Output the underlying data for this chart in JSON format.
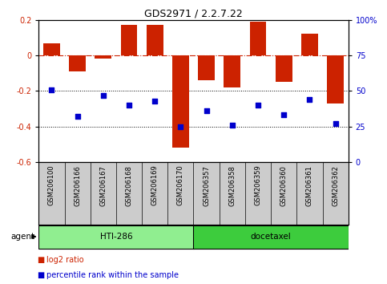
{
  "title": "GDS2971 / 2.2.7.22",
  "samples": [
    "GSM206100",
    "GSM206166",
    "GSM206167",
    "GSM206168",
    "GSM206169",
    "GSM206170",
    "GSM206357",
    "GSM206358",
    "GSM206359",
    "GSM206360",
    "GSM206361",
    "GSM206362"
  ],
  "log2_ratio": [
    0.07,
    -0.09,
    -0.02,
    0.17,
    0.17,
    -0.52,
    -0.14,
    -0.18,
    0.19,
    -0.15,
    0.12,
    -0.27
  ],
  "percentile_rank": [
    51,
    32,
    47,
    40,
    43,
    25,
    36,
    26,
    40,
    33,
    44,
    27
  ],
  "groups": [
    {
      "label": "HTI-286",
      "color": "#90EE90",
      "start": 0,
      "end": 5
    },
    {
      "label": "docetaxel",
      "color": "#3DCC3D",
      "start": 6,
      "end": 11
    }
  ],
  "ylim_left": [
    -0.6,
    0.2
  ],
  "ylim_right": [
    0,
    100
  ],
  "yticks_left": [
    -0.6,
    -0.4,
    -0.2,
    0.0,
    0.2
  ],
  "yticks_right": [
    0,
    25,
    50,
    75,
    100
  ],
  "bar_color": "#CC2200",
  "dot_color": "#0000CC",
  "hline_y": 0.0,
  "dotted_lines": [
    -0.2,
    -0.4
  ],
  "legend_items": [
    {
      "label": "log2 ratio",
      "color": "#CC2200"
    },
    {
      "label": "percentile rank within the sample",
      "color": "#0000CC"
    }
  ],
  "agent_label": "agent",
  "bar_width": 0.65,
  "sample_box_color": "#CCCCCC",
  "title_fontsize": 9,
  "tick_fontsize": 7,
  "label_fontsize": 6,
  "legend_fontsize": 7
}
